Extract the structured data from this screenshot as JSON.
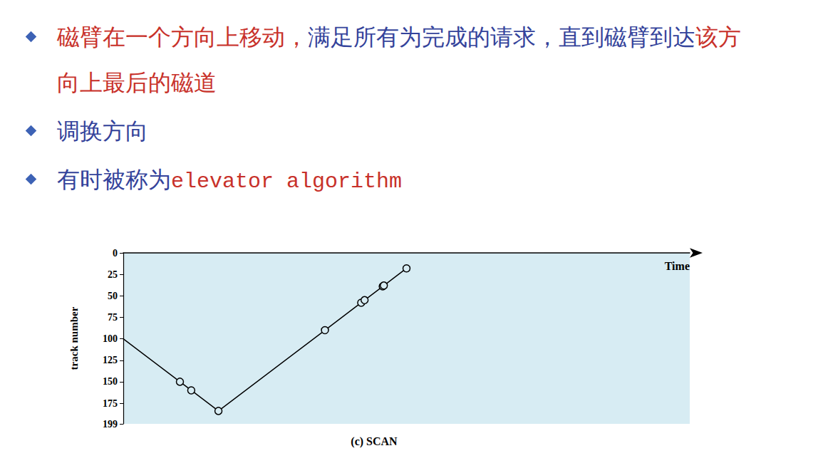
{
  "slide": {
    "bullets": [
      [
        {
          "text": "磁臂在一个方向上移动，",
          "color": "#c8312a"
        },
        {
          "text": "满足所有为完成的请求，直到磁臂到达",
          "color": "#34439b"
        },
        {
          "text": "该方向上最后的磁道",
          "color": "#c8312a"
        }
      ],
      [
        {
          "text": "调换方向",
          "color": "#34439b"
        }
      ],
      [
        {
          "text": "有时被称为",
          "color": "#34439b"
        },
        {
          "text": "elevator algorithm",
          "color": "#c8312a",
          "font": "mono"
        }
      ]
    ]
  },
  "chart_data": {
    "type": "line",
    "title": "(c) SCAN",
    "x_label": "Time",
    "y_label": "track number",
    "start": {
      "x": 0,
      "y": 100
    },
    "x": [
      50,
      60,
      84,
      178,
      210,
      213,
      229,
      230,
      250
    ],
    "values": [
      150,
      160,
      184,
      90,
      58,
      55,
      39,
      38,
      18
    ],
    "color": "#000000",
    "marker": "circle",
    "line_style": "solid",
    "xlim": [
      0,
      500
    ],
    "ylim": [
      199,
      0
    ],
    "yticks": [
      0,
      25,
      50,
      75,
      100,
      125,
      150,
      175,
      199
    ],
    "tick_labels": "y",
    "grid": false
  }
}
